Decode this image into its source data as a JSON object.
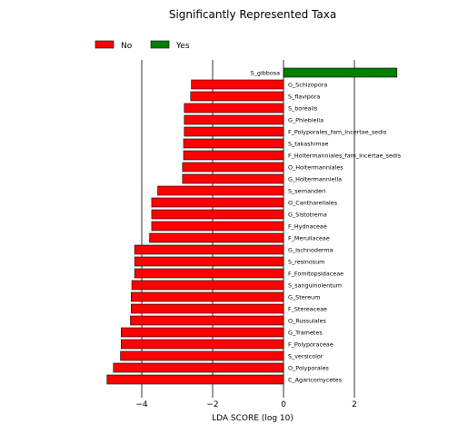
{
  "chart_data": {
    "type": "bar",
    "orientation": "horizontal",
    "title": "Significantly Represented Taxa",
    "xlabel": "LDA SCORE (log 10)",
    "ylabel": "",
    "xlim": [
      -5.0,
      3.3
    ],
    "xticks": [
      -4,
      -2,
      0,
      2
    ],
    "grid": "vertical lines at x ticks",
    "legend": {
      "placement": "top-left",
      "entries": [
        {
          "name": "No",
          "color": "#ff0000"
        },
        {
          "name": "Yes",
          "color": "#008000"
        }
      ]
    },
    "colors": {
      "No": "#ff0000",
      "Yes": "#008000"
    },
    "bars": [
      {
        "label": "S_gibbosa",
        "value": 3.2,
        "group": "Yes"
      },
      {
        "label": "G_Schizopora",
        "value": -2.6,
        "group": "No"
      },
      {
        "label": "S_flavipora",
        "value": -2.62,
        "group": "No"
      },
      {
        "label": "S_borealis",
        "value": -2.8,
        "group": "No"
      },
      {
        "label": "G_Phlebiella",
        "value": -2.8,
        "group": "No"
      },
      {
        "label": "F_Polyporales_fam_Incertae_sedis",
        "value": -2.8,
        "group": "No"
      },
      {
        "label": "S_takashimae",
        "value": -2.82,
        "group": "No"
      },
      {
        "label": "F_Holtermanniales_fam_Incertae_sedis",
        "value": -2.82,
        "group": "No"
      },
      {
        "label": "O_Holtermanniales",
        "value": -2.85,
        "group": "No"
      },
      {
        "label": "G_Holtermanniella",
        "value": -2.85,
        "group": "No"
      },
      {
        "label": "S_sernanderi",
        "value": -3.55,
        "group": "No"
      },
      {
        "label": "O_Cantharellales",
        "value": -3.72,
        "group": "No"
      },
      {
        "label": "G_Sistotrema",
        "value": -3.72,
        "group": "No"
      },
      {
        "label": "F_Hydnaceae",
        "value": -3.72,
        "group": "No"
      },
      {
        "label": "F_Meruliaceae",
        "value": -3.78,
        "group": "No"
      },
      {
        "label": "G_Ischnoderma",
        "value": -4.2,
        "group": "No"
      },
      {
        "label": "S_resinosum",
        "value": -4.2,
        "group": "No"
      },
      {
        "label": "F_Fomitopsidaceae",
        "value": -4.2,
        "group": "No"
      },
      {
        "label": "S_sanguinolentum",
        "value": -4.28,
        "group": "No"
      },
      {
        "label": "G_Stereum",
        "value": -4.3,
        "group": "No"
      },
      {
        "label": "F_Stereaceae",
        "value": -4.3,
        "group": "No"
      },
      {
        "label": "O_Russulales",
        "value": -4.32,
        "group": "No"
      },
      {
        "label": "G_Trametes",
        "value": -4.58,
        "group": "No"
      },
      {
        "label": "F_Polyporaceae",
        "value": -4.58,
        "group": "No"
      },
      {
        "label": "S_versicolor",
        "value": -4.6,
        "group": "No"
      },
      {
        "label": "O_Polyporales",
        "value": -4.8,
        "group": "No"
      },
      {
        "label": "C_Agaricomycetes",
        "value": -4.98,
        "group": "No"
      }
    ]
  }
}
